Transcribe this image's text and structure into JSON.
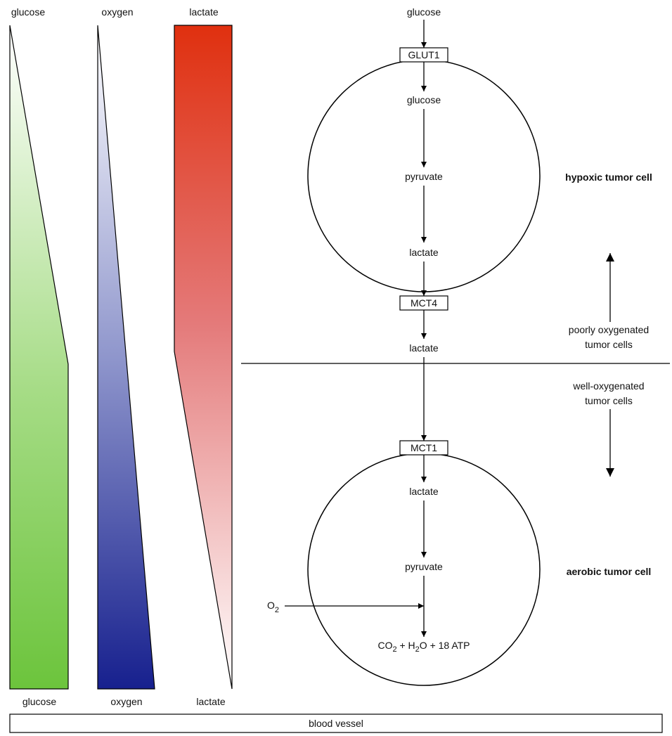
{
  "gradients": {
    "glucose": {
      "top_label": "glucose",
      "bottom_label": "glucose",
      "color_top": "#ffffff",
      "color_bottom": "#6cc43c"
    },
    "oxygen": {
      "top_label": "oxygen",
      "bottom_label": "oxygen",
      "color_top": "#ffffff",
      "color_bottom": "#17208e"
    },
    "lactate": {
      "top_label": "lactate",
      "bottom_label": "lactate",
      "color_top": "#e0300f",
      "color_bottom": "#ffffff"
    }
  },
  "external_glucose": "glucose",
  "transporters": {
    "glut1": "GLUT1",
    "mct4": "MCT4",
    "mct1": "MCT1"
  },
  "hypoxic_cell": {
    "label": "hypoxic tumor cell",
    "steps": [
      "glucose",
      "pyruvate",
      "lactate"
    ]
  },
  "shuttled": "lactate",
  "aerobic_cell": {
    "label": "aerobic tumor cell",
    "steps": [
      "lactate",
      "pyruvate"
    ],
    "input": {
      "main": "O",
      "sub": "2"
    },
    "products": {
      "co2_main": "CO",
      "co2_sub": "2",
      "plus1": " + H",
      "h2o_sub": "2",
      "rest": "O + 18 ATP"
    }
  },
  "zones": {
    "poorly": [
      "poorly oxygenated",
      "tumor cells"
    ],
    "well": [
      "well-oxygenated",
      "tumor cells"
    ]
  },
  "blood_vessel": "blood vessel"
}
